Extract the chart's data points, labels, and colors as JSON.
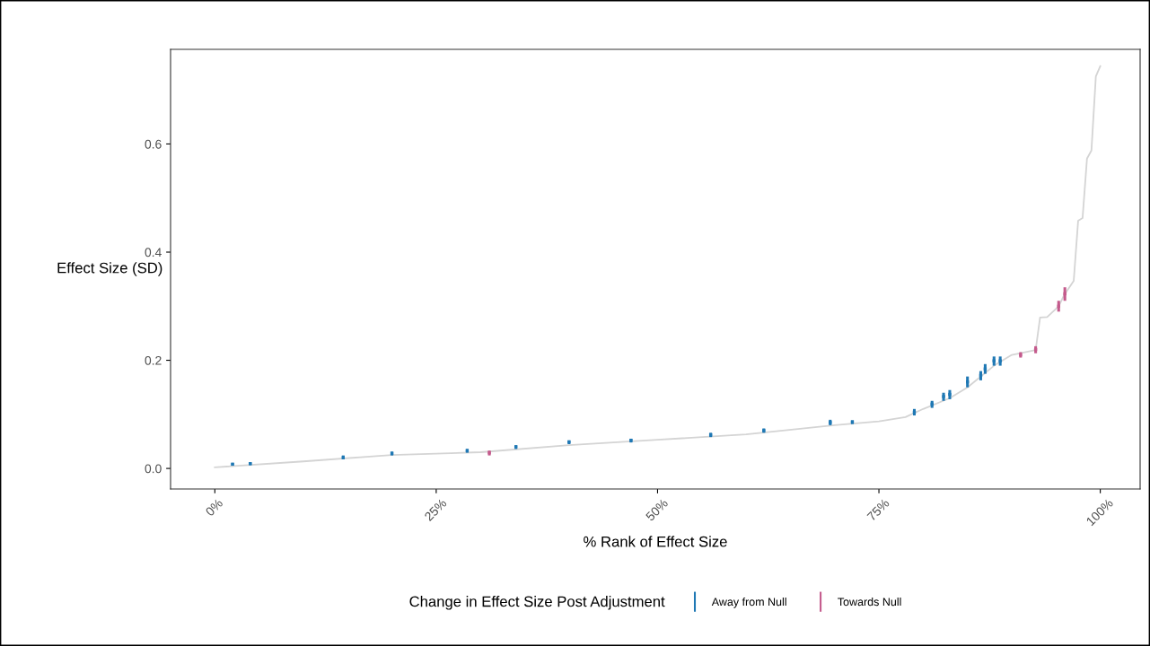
{
  "chart_data": {
    "type": "line",
    "xlabel": "% Rank of Effect Size",
    "ylabel": "Effect Size (SD)",
    "legend_title": "Change in Effect Size Post Adjustment",
    "xlim": [
      -5,
      104.5
    ],
    "ylim": [
      -0.038,
      0.775
    ],
    "xticks": [
      {
        "value": 0,
        "label": "0%"
      },
      {
        "value": 25,
        "label": "25%"
      },
      {
        "value": 50,
        "label": "50%"
      },
      {
        "value": 75,
        "label": "75%"
      },
      {
        "value": 100,
        "label": "100%"
      }
    ],
    "yticks": [
      {
        "value": 0,
        "label": "0.0"
      },
      {
        "value": 0.2,
        "label": "0.2"
      },
      {
        "value": 0.4,
        "label": "0.4"
      },
      {
        "value": 0.6,
        "label": "0.6"
      }
    ],
    "grid": false,
    "legend": "bottom",
    "series": [
      {
        "color": "#d4d4d4",
        "x": [
          0,
          10,
          20,
          30,
          40,
          50,
          60,
          70,
          75,
          78,
          80,
          83,
          85,
          88,
          90,
          92.7,
          93.2,
          94,
          95.3,
          95.9,
          97,
          97.5,
          98,
          98.5,
          99,
          99.5,
          100
        ],
        "values": [
          0.002,
          0.013,
          0.025,
          0.03,
          0.043,
          0.053,
          0.063,
          0.08,
          0.087,
          0.095,
          0.11,
          0.13,
          0.15,
          0.19,
          0.21,
          0.219,
          0.279,
          0.28,
          0.3,
          0.32,
          0.347,
          0.458,
          0.463,
          0.573,
          0.588,
          0.725,
          0.744
        ]
      },
      {
        "type": "scatter",
        "name": "Away from Null",
        "color": "#1f78b4",
        "marker": "square",
        "x": [
          2,
          4,
          14.5,
          20,
          28.5,
          34,
          40,
          47,
          56,
          62,
          69.5,
          72,
          79,
          81,
          82.3,
          83,
          85,
          86.5,
          87,
          88,
          88.7
        ],
        "values": [
          0.008,
          0.009,
          0.02,
          0.028,
          0.033,
          0.04,
          0.049,
          0.052,
          0.062,
          0.07,
          0.085,
          0.086,
          0.104,
          0.119,
          0.133,
          0.137,
          0.16,
          0.172,
          0.184,
          0.199,
          0.199
        ],
        "errors": [
          [
            0.005,
            0.01
          ],
          [
            0.006,
            0.011
          ],
          [
            0.017,
            0.024
          ],
          [
            0.024,
            0.031
          ],
          [
            0.029,
            0.036
          ],
          [
            0.036,
            0.043
          ],
          [
            0.045,
            0.052
          ],
          [
            0.048,
            0.055
          ],
          [
            0.058,
            0.066
          ],
          [
            0.066,
            0.074
          ],
          [
            0.08,
            0.09
          ],
          [
            0.082,
            0.089
          ],
          [
            0.098,
            0.11
          ],
          [
            0.112,
            0.125
          ],
          [
            0.125,
            0.14
          ],
          [
            0.128,
            0.145
          ],
          [
            0.15,
            0.17
          ],
          [
            0.163,
            0.18
          ],
          [
            0.175,
            0.193
          ],
          [
            0.19,
            0.207
          ],
          [
            0.19,
            0.207
          ]
        ]
      },
      {
        "type": "scatter",
        "name": "Towards Null",
        "color": "#c45a8c",
        "marker": "square",
        "x": [
          31,
          91,
          92.7,
          95.3,
          96
        ],
        "values": [
          0.029,
          0.21,
          0.22,
          0.3,
          0.323
        ],
        "errors": [
          [
            0.024,
            0.033
          ],
          [
            0.205,
            0.215
          ],
          [
            0.213,
            0.226
          ],
          [
            0.29,
            0.31
          ],
          [
            0.31,
            0.335
          ]
        ]
      }
    ]
  }
}
